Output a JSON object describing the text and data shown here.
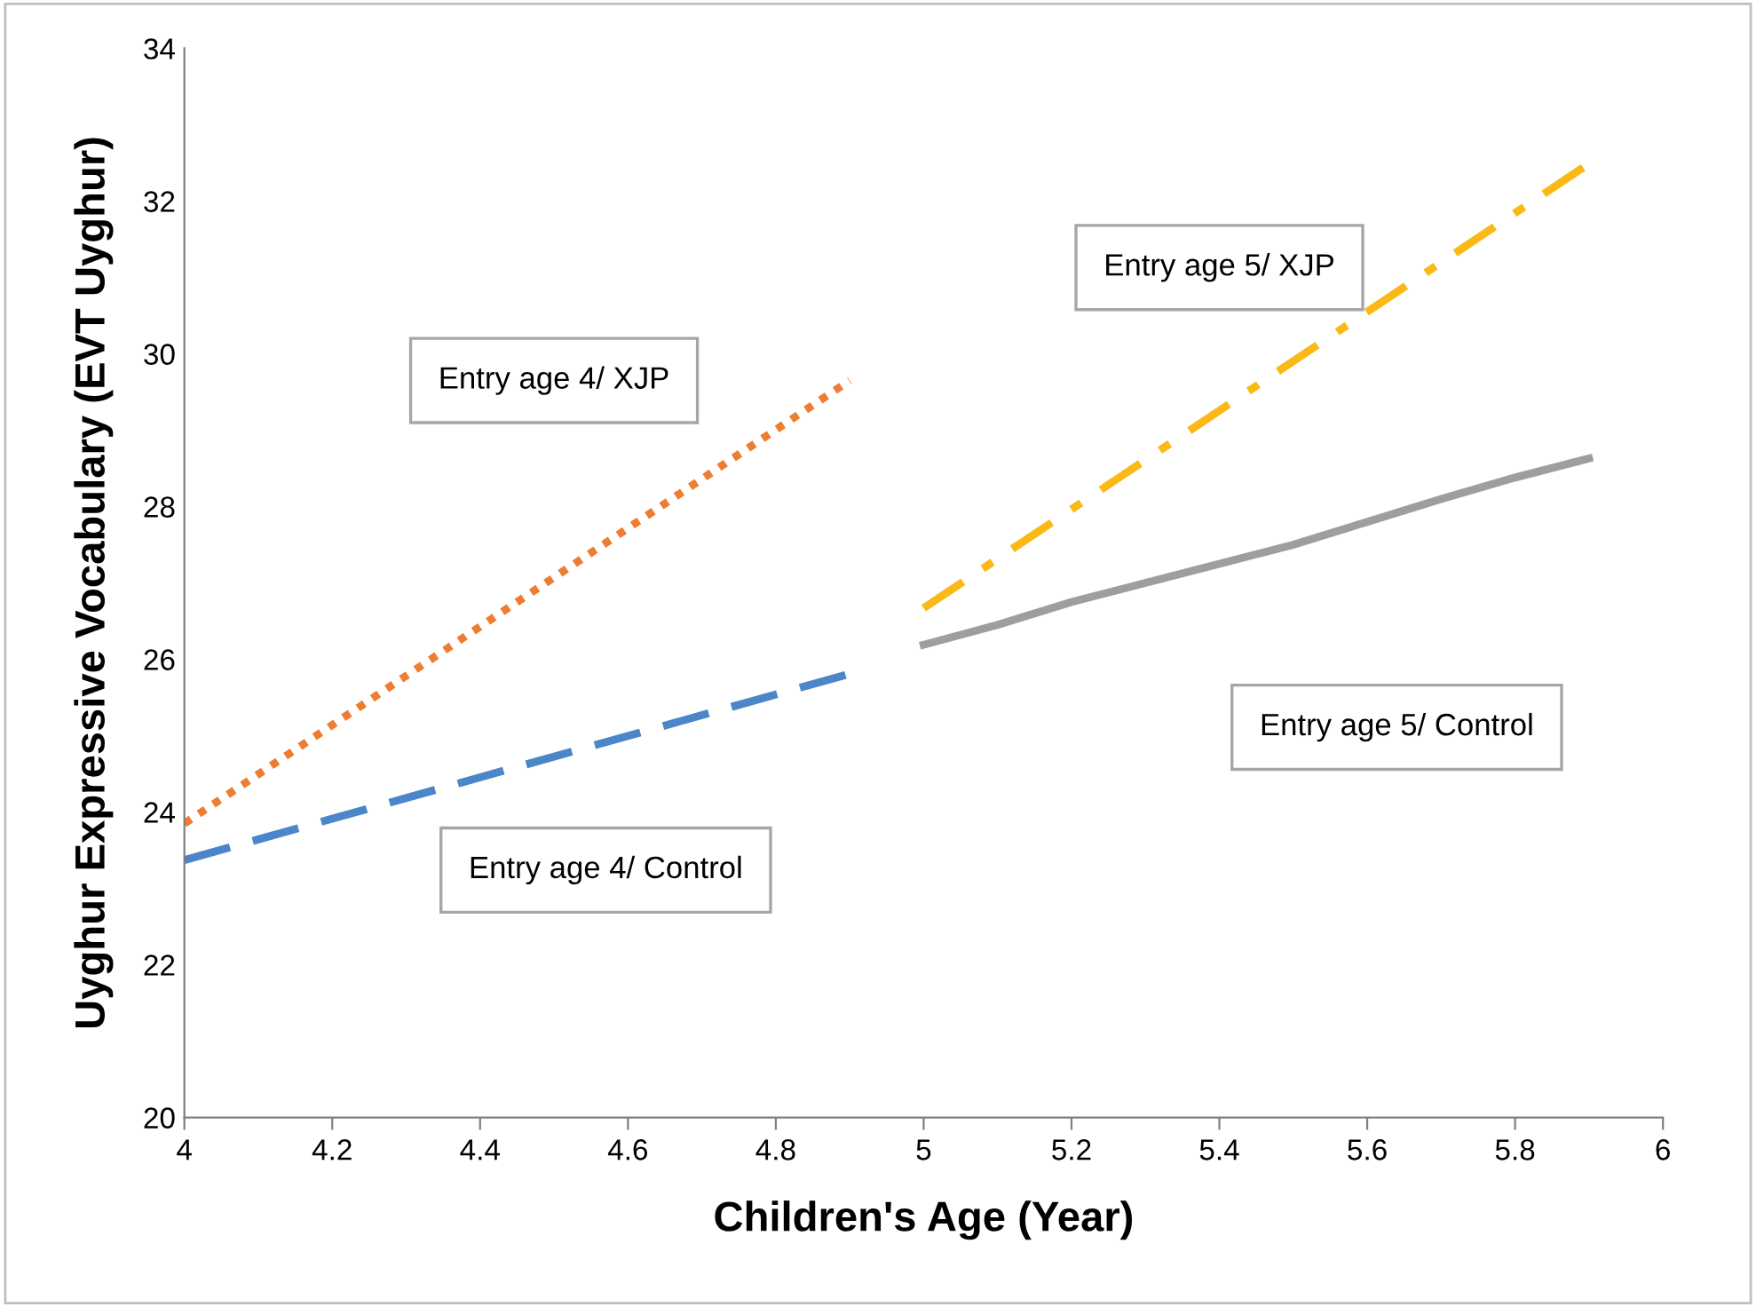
{
  "chart_data": {
    "type": "line",
    "xlabel": "Children's Age (Year)",
    "ylabel": "Uyghur Expressive Vocabulary (EVT Uyghur)",
    "xlim": [
      4,
      6
    ],
    "xticks": [
      4,
      4.2,
      4.4,
      4.6,
      4.8,
      5,
      5.2,
      5.4,
      5.6,
      5.8,
      6
    ],
    "ylim": [
      20,
      34
    ],
    "yticks": [
      20,
      22,
      24,
      26,
      28,
      30,
      32,
      34
    ],
    "grid": false,
    "legend": false,
    "marker": "none",
    "series": [
      {
        "name": "Entry age 4/ XJP",
        "color": "#ed7d31",
        "line_style": "dotted",
        "x": [
          4,
          4.9
        ],
        "values": [
          23.85,
          29.65
        ]
      },
      {
        "name": "Entry age 4/ Control",
        "color": "#4a86c8",
        "line_style": "dashed",
        "x": [
          4,
          4.9
        ],
        "values": [
          23.37,
          25.81
        ]
      },
      {
        "name": "Entry age 5/ XJP",
        "color": "#fbb917",
        "line_style": "dashdot",
        "x": [
          5,
          5.9
        ],
        "values": [
          26.67,
          32.49
        ]
      },
      {
        "name": "Entry age 5/ Control",
        "color": "#9e9e9e",
        "line_style": "solid",
        "x": [
          5,
          5.1,
          5.2,
          5.3,
          5.4,
          5.5,
          5.6,
          5.7,
          5.8,
          5.9
        ],
        "values": [
          26.19,
          26.45,
          26.75,
          27.0,
          27.25,
          27.5,
          27.8,
          28.1,
          28.38,
          28.63
        ]
      }
    ]
  }
}
